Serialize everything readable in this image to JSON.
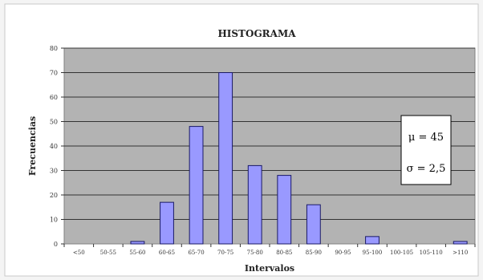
{
  "chart_data": {
    "type": "bar",
    "title": "HISTOGRAMA",
    "xlabel": "Intervalos",
    "ylabel": "Frecuencias",
    "ylim": [
      0,
      80
    ],
    "yticks": [
      0,
      10,
      20,
      30,
      40,
      50,
      60,
      70,
      80
    ],
    "grid": true,
    "categories": [
      "<50",
      "50-55",
      "55-60",
      "60-65",
      "65-70",
      "70-75",
      "75-80",
      "80-85",
      "85-90",
      "90-95",
      "95-100",
      "100-105",
      "105-110",
      ">110"
    ],
    "values": [
      0,
      0,
      1,
      17,
      48,
      70,
      32,
      28,
      16,
      0,
      3,
      0,
      0,
      1
    ],
    "bar_color": "#9999ff",
    "plot_background": "#b3b3b3",
    "annotation": {
      "mu": "μ = 45",
      "sigma": "σ = 2,5"
    }
  }
}
